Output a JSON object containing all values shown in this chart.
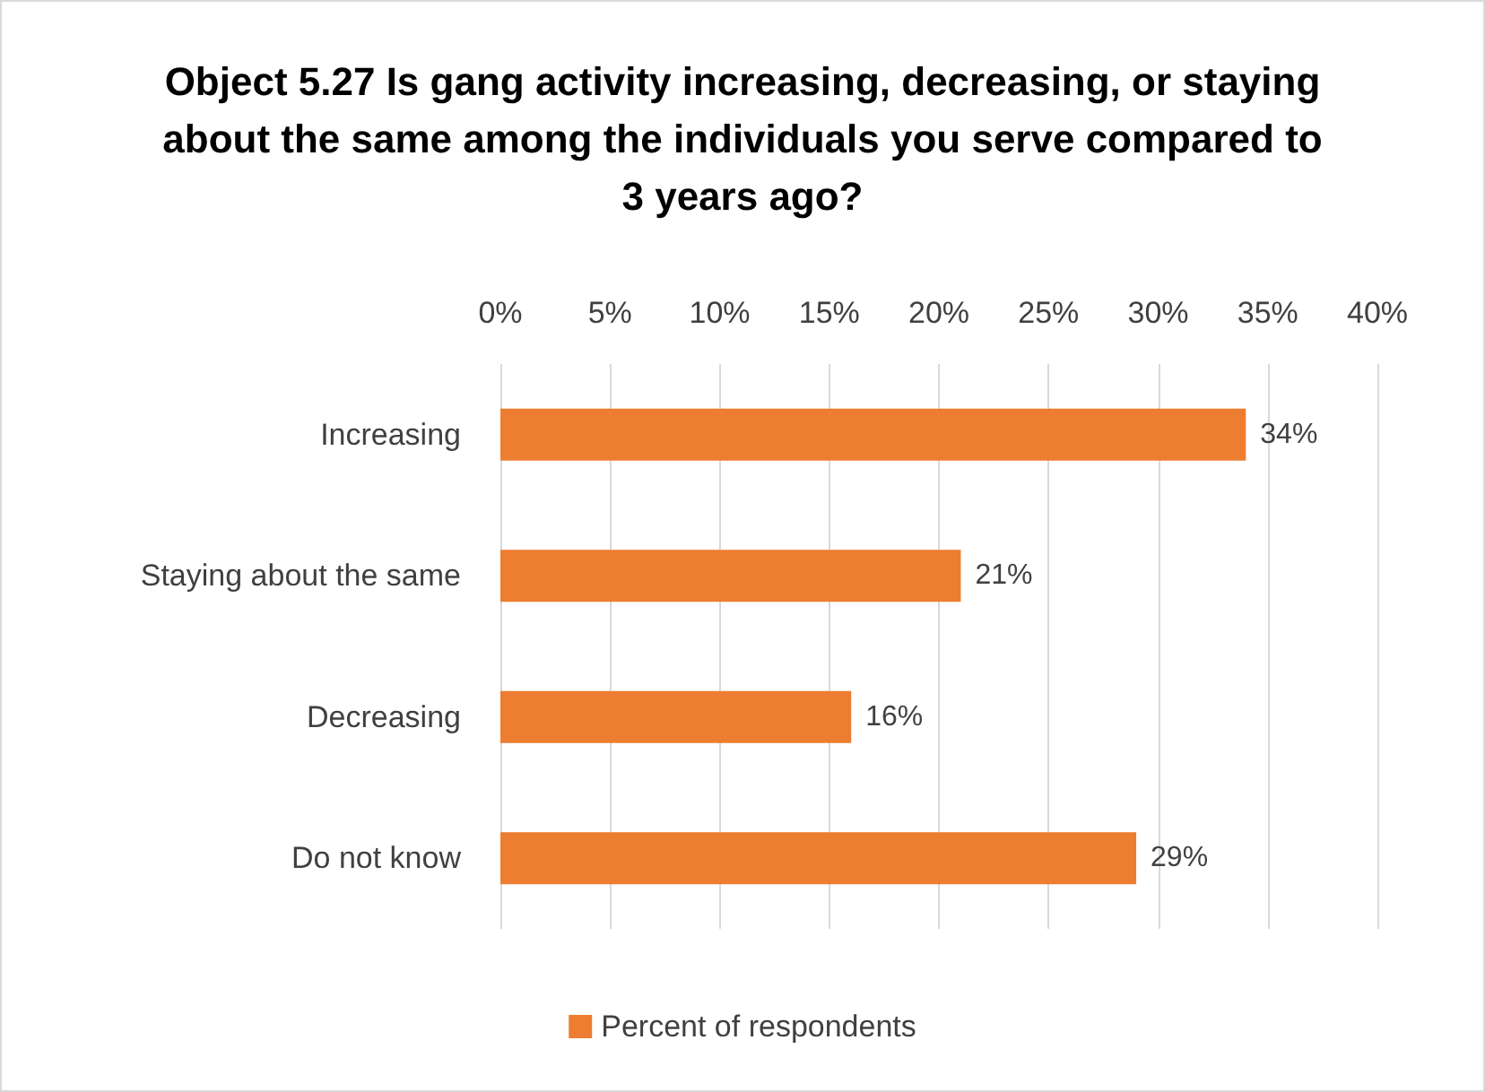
{
  "chart_data": {
    "type": "bar",
    "orientation": "horizontal",
    "title": "Object 5.27 Is gang activity increasing, decreasing, or staying about the same among the individuals you serve compared to 3 years ago?",
    "categories": [
      "Increasing",
      "Staying about the same",
      "Decreasing",
      "Do not know"
    ],
    "series": [
      {
        "name": "Percent of respondents",
        "color": "#ed7d31",
        "values": [
          34,
          21,
          16,
          29
        ],
        "value_labels": [
          "34%",
          "21%",
          "16%",
          "29%"
        ]
      }
    ],
    "xlim": [
      0,
      40
    ],
    "xticks": [
      {
        "value": 0,
        "label": "0%"
      },
      {
        "value": 5,
        "label": "5%"
      },
      {
        "value": 10,
        "label": "10%"
      },
      {
        "value": 15,
        "label": "15%"
      },
      {
        "value": 20,
        "label": "20%"
      },
      {
        "value": 25,
        "label": "25%"
      },
      {
        "value": 30,
        "label": "30%"
      },
      {
        "value": 35,
        "label": "35%"
      },
      {
        "value": 40,
        "label": "40%"
      }
    ],
    "grid": "x",
    "legend": "bottom"
  }
}
